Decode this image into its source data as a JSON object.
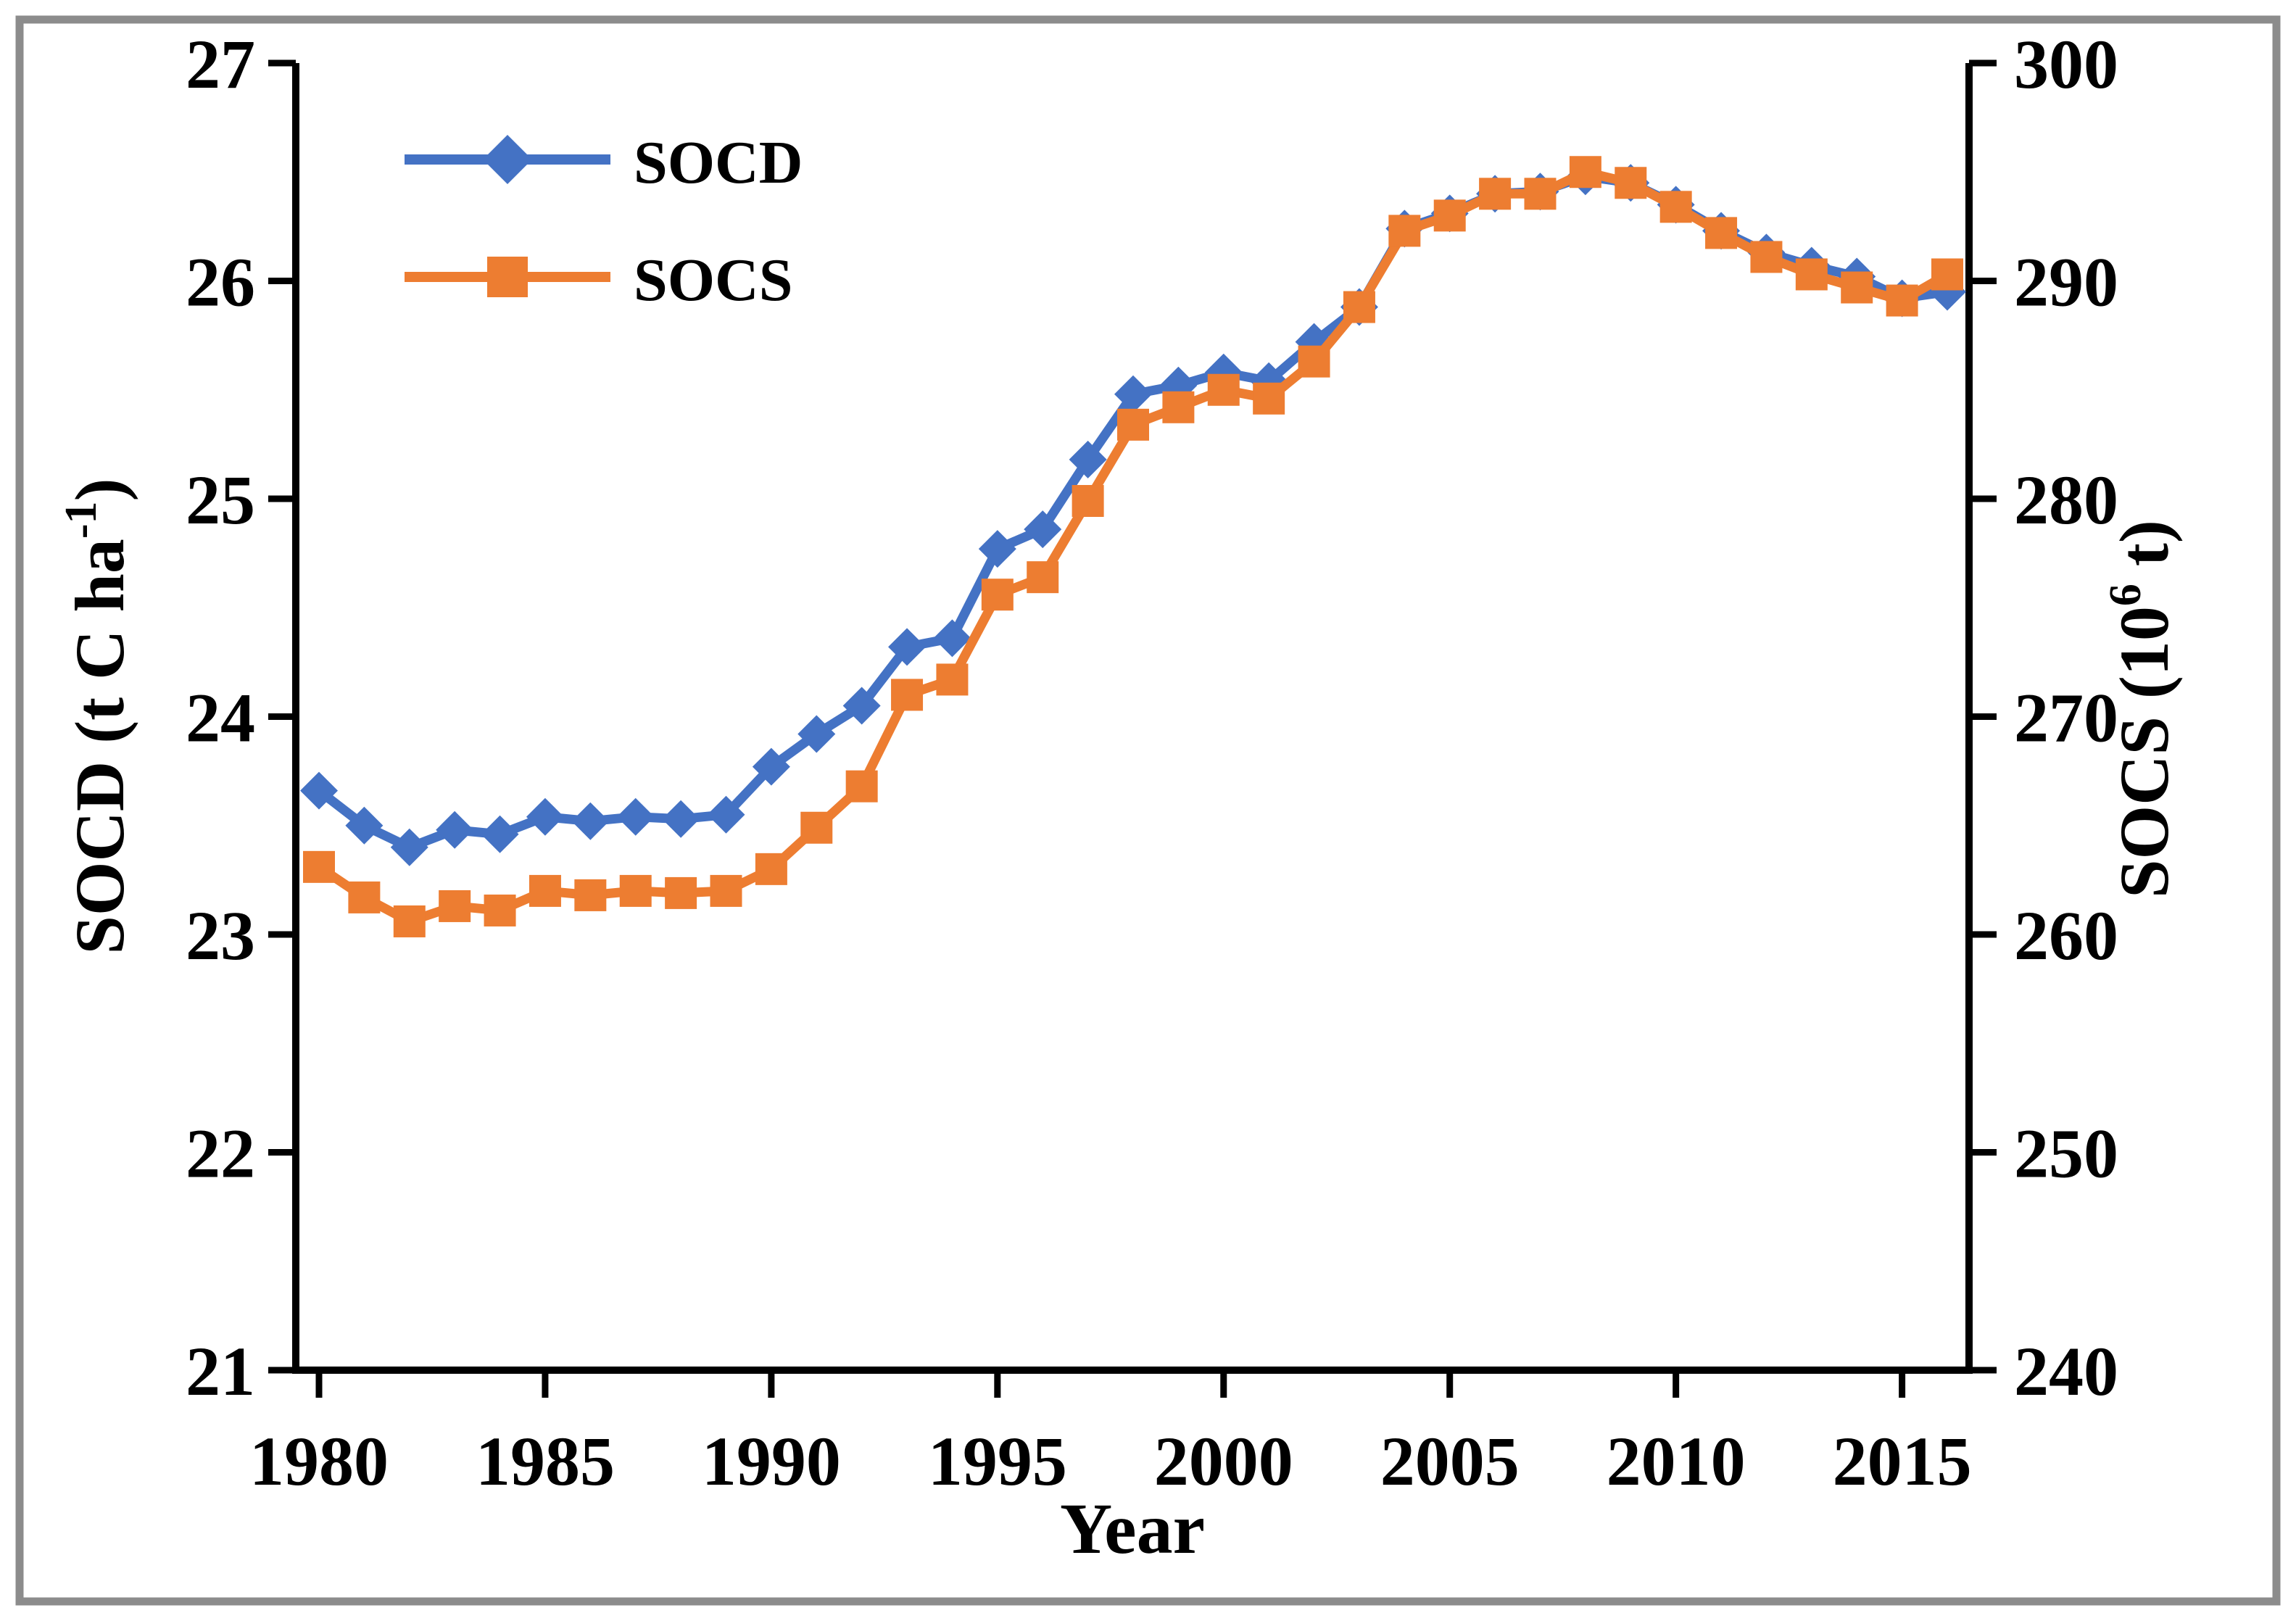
{
  "figure": {
    "background": "#ffffff",
    "border_color": "#8c8c8c"
  },
  "legend": {
    "position": "top-left-inside",
    "items": [
      {
        "label": "SOCD",
        "marker": "diamond",
        "color": "#4472C4"
      },
      {
        "label": "SOCS",
        "marker": "square",
        "color": "#ED7D31"
      }
    ]
  },
  "chart_data": {
    "type": "line",
    "title": "",
    "xlabel": "Year",
    "ylabel_left": "SOCD (t C ha⁻¹)",
    "ylabel_left_parts": {
      "pre": "SOCD (t C ha",
      "sup": "-1",
      "post": ")"
    },
    "ylabel_right": "SOCS (10⁶ t)",
    "ylabel_right_parts": {
      "pre": "SOCS (10",
      "sup": "6",
      "post": " t)"
    },
    "x": [
      1980,
      1981,
      1982,
      1983,
      1984,
      1985,
      1986,
      1987,
      1988,
      1989,
      1990,
      1991,
      1992,
      1993,
      1994,
      1995,
      1996,
      1997,
      1998,
      1999,
      2000,
      2001,
      2002,
      2003,
      2004,
      2005,
      2006,
      2007,
      2008,
      2009,
      2010,
      2011,
      2012,
      2013,
      2014,
      2015,
      2016
    ],
    "x_tick_labels": [
      1980,
      1985,
      1990,
      1995,
      2000,
      2005,
      2010,
      2015
    ],
    "y_left_axis": {
      "min": 21,
      "max": 27,
      "ticks": [
        21,
        22,
        23,
        24,
        25,
        26,
        27
      ]
    },
    "y_right_axis": {
      "min": 240,
      "max": 300,
      "ticks": [
        240,
        250,
        260,
        270,
        280,
        290,
        300
      ]
    },
    "grid": "off",
    "series": [
      {
        "name": "SOCD",
        "axis": "left",
        "color": "#4472C4",
        "marker": "diamond",
        "values": [
          23.66,
          23.5,
          23.4,
          23.48,
          23.46,
          23.54,
          23.52,
          23.54,
          23.53,
          23.55,
          23.77,
          23.92,
          24.05,
          24.32,
          24.36,
          24.77,
          24.86,
          25.18,
          25.48,
          25.52,
          25.58,
          25.54,
          25.72,
          25.88,
          26.24,
          26.31,
          26.4,
          26.41,
          26.48,
          26.45,
          26.35,
          26.23,
          26.13,
          26.07,
          26.02,
          25.92,
          25.95
        ]
      },
      {
        "name": "SOCS",
        "axis": "right",
        "color": "#ED7D31",
        "marker": "square",
        "values": [
          263.1,
          261.7,
          260.6,
          261.3,
          261.1,
          262.0,
          261.8,
          262.0,
          261.9,
          262.0,
          263.0,
          264.9,
          266.8,
          271.0,
          271.7,
          275.6,
          276.4,
          279.9,
          283.4,
          284.2,
          285.0,
          284.6,
          286.3,
          288.8,
          292.3,
          293.0,
          294.0,
          294.0,
          295.0,
          294.5,
          293.4,
          292.2,
          291.1,
          290.3,
          289.7,
          289.1,
          290.3
        ]
      }
    ]
  }
}
